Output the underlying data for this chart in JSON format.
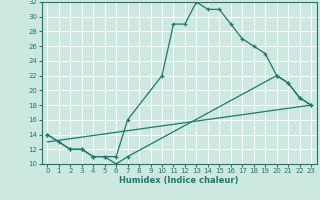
{
  "title": "",
  "xlabel": "Humidex (Indice chaleur)",
  "xlim": [
    -0.5,
    23.5
  ],
  "ylim": [
    10,
    32
  ],
  "xticks": [
    0,
    1,
    2,
    3,
    4,
    5,
    6,
    7,
    8,
    9,
    10,
    11,
    12,
    13,
    14,
    15,
    16,
    17,
    18,
    19,
    20,
    21,
    22,
    23
  ],
  "yticks": [
    10,
    12,
    14,
    16,
    18,
    20,
    22,
    24,
    26,
    28,
    30,
    32
  ],
  "bg_color": "#cce8e0",
  "line_color": "#1a7a6e",
  "grid_color": "#ffffff",
  "series1_x": [
    0,
    1,
    2,
    3,
    4,
    5,
    6,
    7,
    10,
    11,
    12,
    13,
    14,
    15,
    16,
    17,
    18,
    19,
    20,
    21,
    22,
    23
  ],
  "series1_y": [
    14,
    13,
    12,
    12,
    11,
    11,
    11,
    16,
    22,
    29,
    29,
    32,
    31,
    31,
    29,
    27,
    26,
    25,
    22,
    21,
    19,
    18
  ],
  "series2_x": [
    0,
    2,
    3,
    4,
    5,
    6,
    7,
    20,
    21,
    22,
    23
  ],
  "series2_y": [
    14,
    12,
    12,
    11,
    11,
    10,
    11,
    22,
    21,
    19,
    18
  ],
  "series3_x": [
    0,
    23
  ],
  "series3_y": [
    13,
    18
  ]
}
